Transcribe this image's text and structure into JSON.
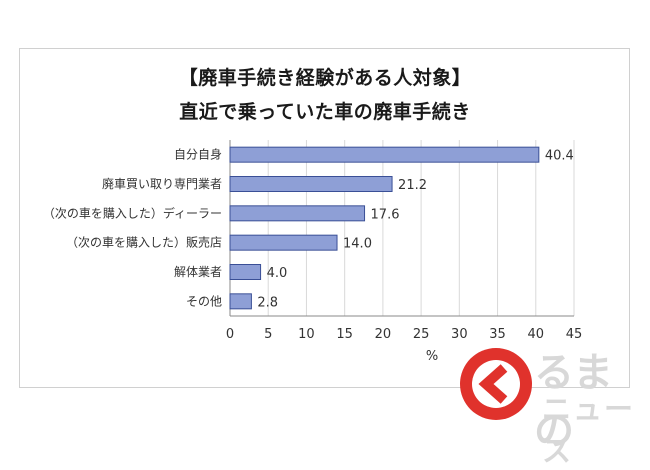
{
  "chart_data": {
    "type": "bar",
    "orientation": "horizontal",
    "title": "【廃車手続き経験がある人対象】",
    "subtitle": "直近で乗っていた車の廃車手続き",
    "categories": [
      "自分自身",
      "廃車買い取り専門業者",
      "（次の車を購入した）ディーラー",
      "（次の車を購入した）販売店",
      "解体業者",
      "その他"
    ],
    "values": [
      40.4,
      21.2,
      17.6,
      14.0,
      4.0,
      2.8
    ],
    "value_labels": [
      "40.4",
      "21.2",
      "17.6",
      "14.0",
      "4.0",
      "2.8"
    ],
    "xlabel": "%",
    "ylabel": "",
    "xlim": [
      0,
      45
    ],
    "xticks": [
      "0",
      "5",
      "10",
      "15",
      "20",
      "25",
      "30",
      "35",
      "40",
      "45"
    ],
    "grid": "vertical",
    "bar_color": "#8e9fd6",
    "bar_border": "#3a4f96"
  },
  "logo": {
    "text_main": "るまの",
    "text_sub": "ニュース",
    "color": "#e0322c"
  }
}
